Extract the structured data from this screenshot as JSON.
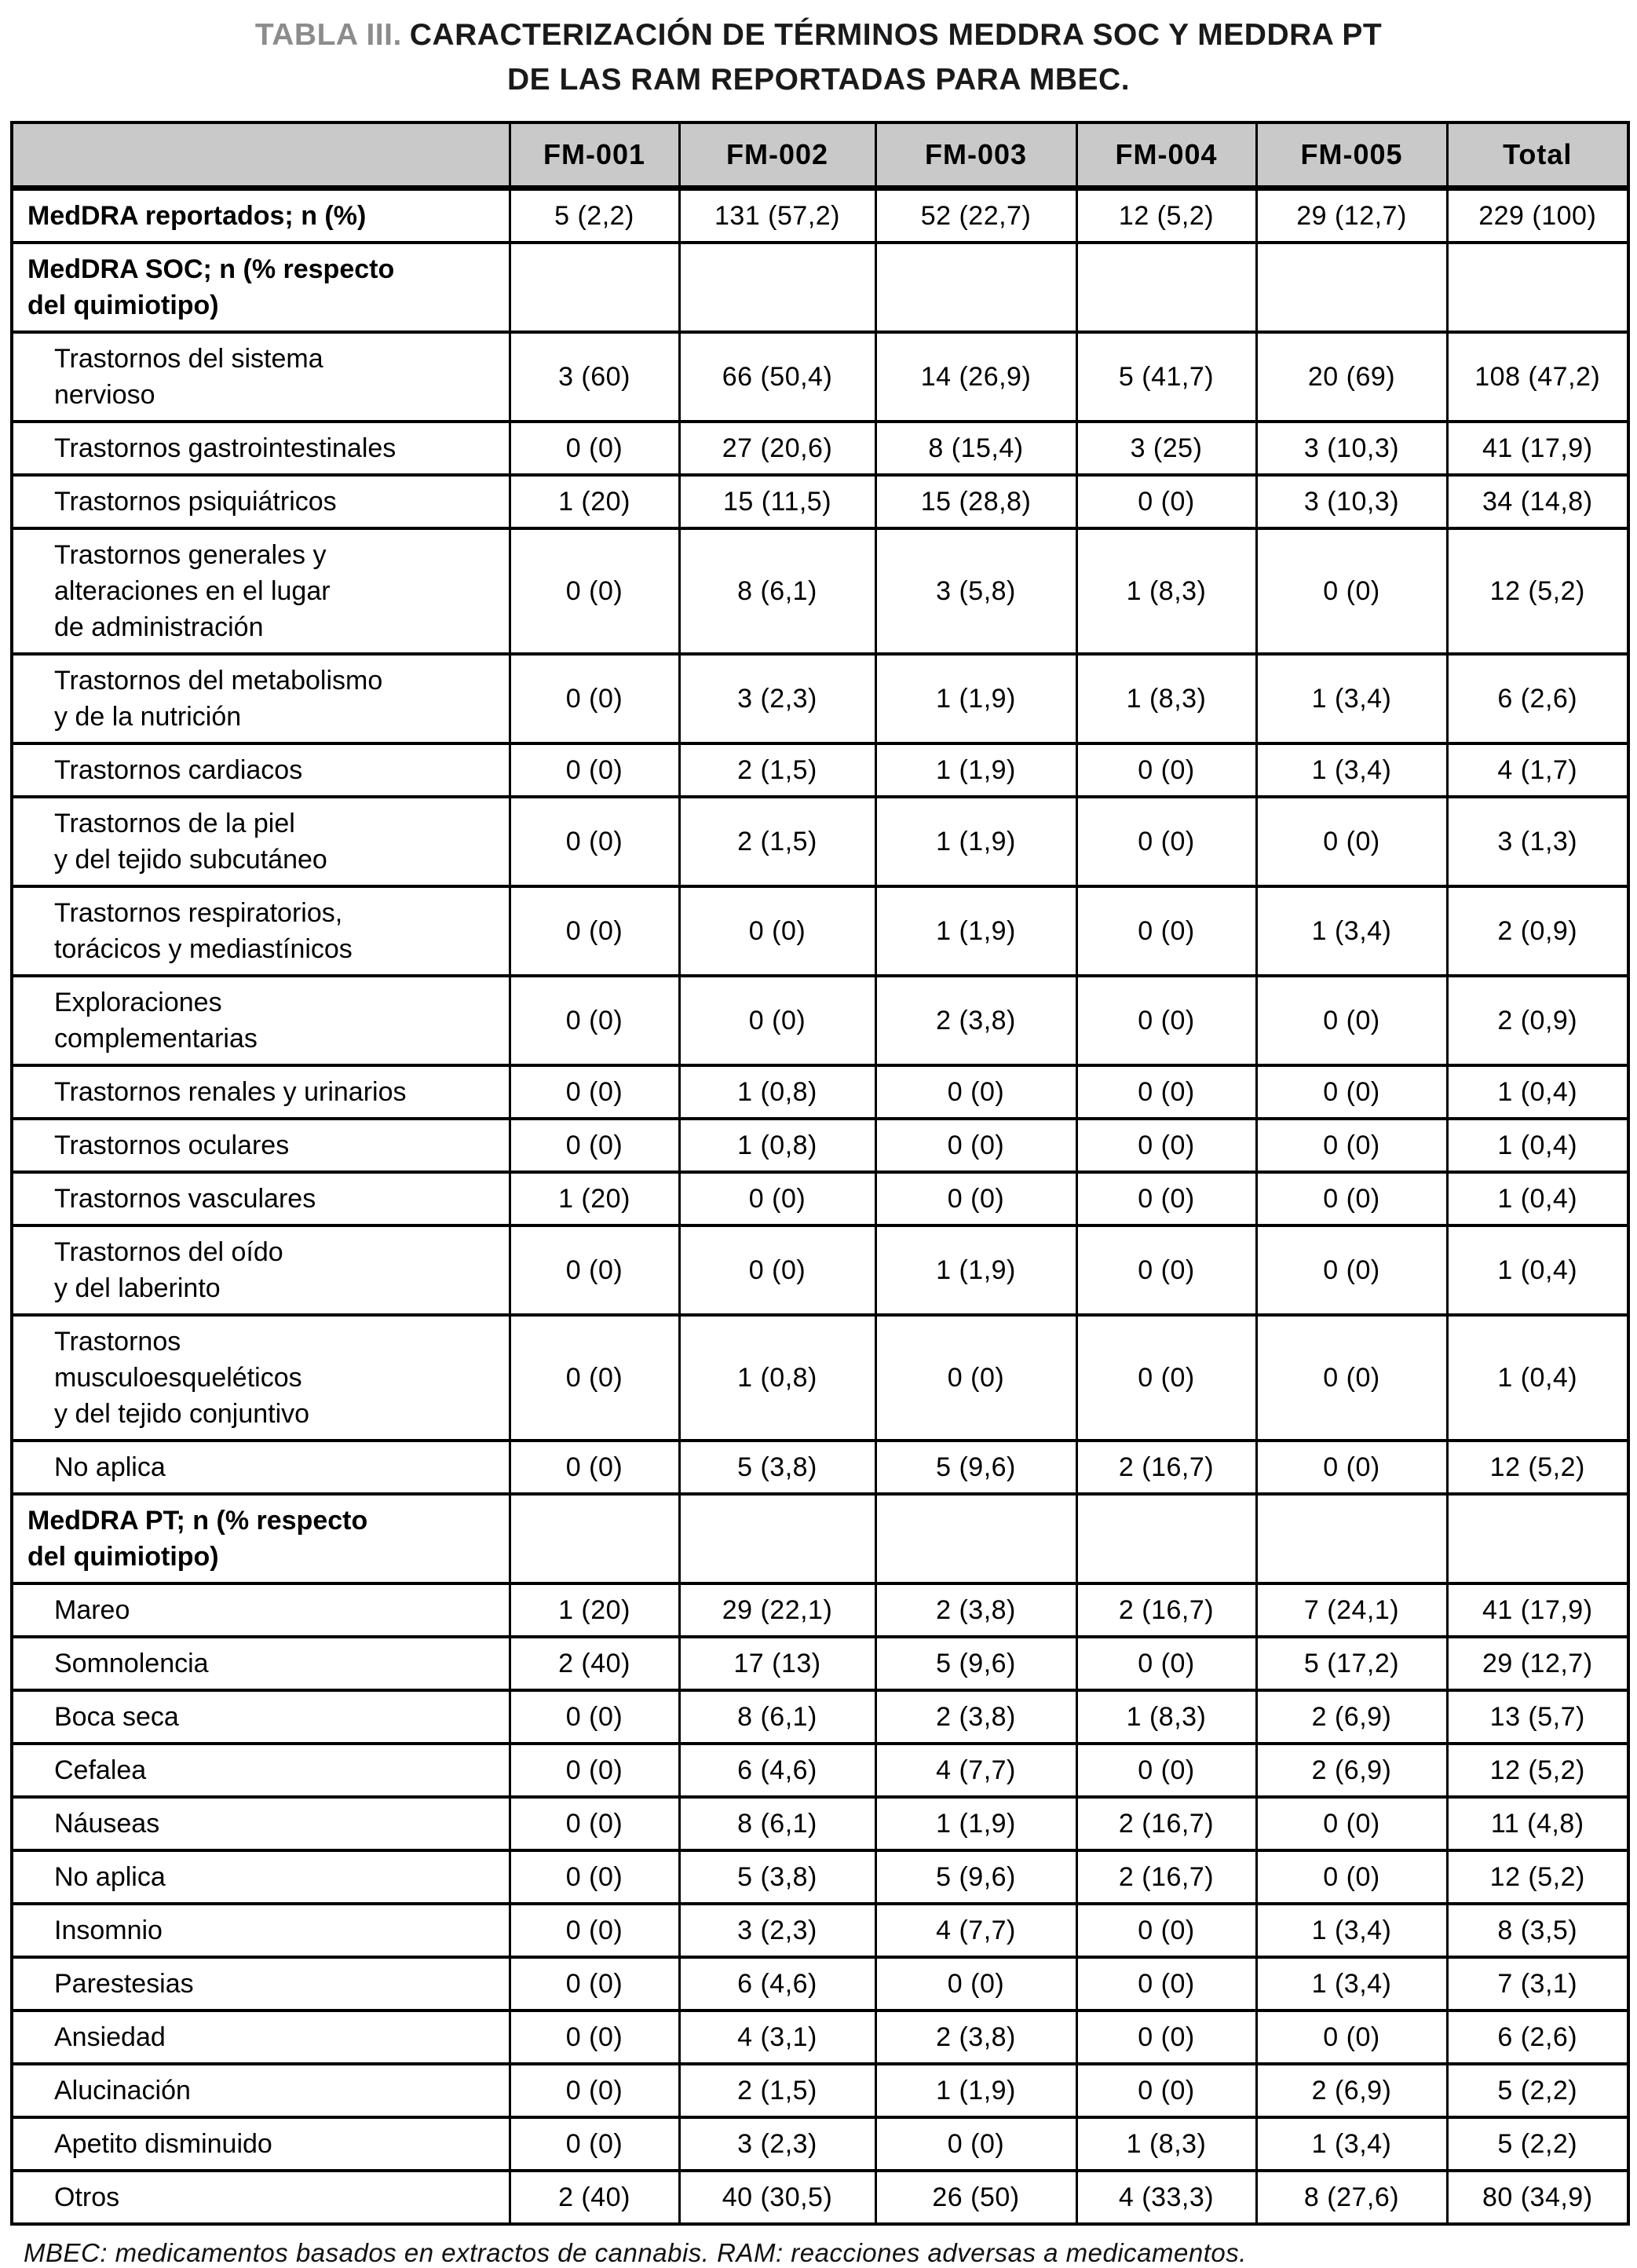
{
  "title": {
    "tag": "TABLA III.",
    "line1": "CARACTERIZACIÓN DE TÉRMINOS MEDDRA SOC Y MEDDRA PT",
    "line2": "DE LAS RAM REPORTADAS PARA MBEC."
  },
  "colors": {
    "header_bg": "#c9c9c9",
    "border": "#000000",
    "title_tag_gray": "#8c8c8c"
  },
  "table": {
    "columns": [
      "",
      "FM-001",
      "FM-002",
      "FM-003",
      "FM-004",
      "FM-005",
      "Total"
    ],
    "rows": [
      {
        "label": "MedDRA reportados; n (%)",
        "type": "bold",
        "values": [
          "5 (2,2)",
          "131 (57,2)",
          "52 (22,7)",
          "12 (5,2)",
          "29 (12,7)",
          "229 (100)"
        ]
      },
      {
        "label": "MedDRA SOC; n (% respecto\ndel quimiotipo)",
        "type": "section",
        "values": [
          "",
          "",
          "",
          "",
          "",
          ""
        ]
      },
      {
        "label": "Trastornos del sistema\nnervioso",
        "type": "data",
        "values": [
          "3 (60)",
          "66 (50,4)",
          "14 (26,9)",
          "5 (41,7)",
          "20 (69)",
          "108 (47,2)"
        ]
      },
      {
        "label": "Trastornos gastrointestinales",
        "type": "data",
        "values": [
          "0 (0)",
          "27 (20,6)",
          "8 (15,4)",
          "3 (25)",
          "3 (10,3)",
          "41 (17,9)"
        ]
      },
      {
        "label": "Trastornos psiquiátricos",
        "type": "data",
        "values": [
          "1 (20)",
          "15 (11,5)",
          "15 (28,8)",
          "0 (0)",
          "3 (10,3)",
          "34 (14,8)"
        ]
      },
      {
        "label": "Trastornos generales y\nalteraciones en el lugar\nde administración",
        "type": "data",
        "values": [
          "0 (0)",
          "8 (6,1)",
          "3 (5,8)",
          "1 (8,3)",
          "0 (0)",
          "12 (5,2)"
        ]
      },
      {
        "label": "Trastornos del metabolismo\ny de la nutrición",
        "type": "data",
        "values": [
          "0 (0)",
          "3 (2,3)",
          "1 (1,9)",
          "1 (8,3)",
          "1 (3,4)",
          "6 (2,6)"
        ]
      },
      {
        "label": "Trastornos cardiacos",
        "type": "data",
        "values": [
          "0 (0)",
          "2 (1,5)",
          "1 (1,9)",
          "0 (0)",
          "1 (3,4)",
          "4 (1,7)"
        ]
      },
      {
        "label": "Trastornos de la piel\ny del tejido subcutáneo",
        "type": "data",
        "values": [
          "0 (0)",
          "2 (1,5)",
          "1 (1,9)",
          "0 (0)",
          "0 (0)",
          "3 (1,3)"
        ]
      },
      {
        "label": "Trastornos respiratorios,\ntorácicos y mediastínicos",
        "type": "data",
        "values": [
          "0 (0)",
          "0 (0)",
          "1 (1,9)",
          "0 (0)",
          "1 (3,4)",
          "2 (0,9)"
        ]
      },
      {
        "label": "Exploraciones\ncomplementarias",
        "type": "data",
        "values": [
          "0 (0)",
          "0 (0)",
          "2 (3,8)",
          "0 (0)",
          "0 (0)",
          "2 (0,9)"
        ]
      },
      {
        "label": "Trastornos renales y urinarios",
        "type": "data",
        "values": [
          "0 (0)",
          "1 (0,8)",
          "0 (0)",
          "0 (0)",
          "0 (0)",
          "1 (0,4)"
        ]
      },
      {
        "label": "Trastornos oculares",
        "type": "data",
        "values": [
          "0 (0)",
          "1 (0,8)",
          "0 (0)",
          "0 (0)",
          "0 (0)",
          "1 (0,4)"
        ]
      },
      {
        "label": "Trastornos vasculares",
        "type": "data",
        "values": [
          "1 (20)",
          "0 (0)",
          "0 (0)",
          "0 (0)",
          "0 (0)",
          "1 (0,4)"
        ]
      },
      {
        "label": "Trastornos del oído\ny del laberinto",
        "type": "data",
        "values": [
          "0 (0)",
          "0 (0)",
          "1 (1,9)",
          "0 (0)",
          "0 (0)",
          "1 (0,4)"
        ]
      },
      {
        "label": "Trastornos\nmusculoesqueléticos\ny del tejido conjuntivo",
        "type": "data",
        "values": [
          "0 (0)",
          "1 (0,8)",
          "0 (0)",
          "0 (0)",
          "0 (0)",
          "1 (0,4)"
        ]
      },
      {
        "label": "No aplica",
        "type": "data",
        "values": [
          "0 (0)",
          "5 (3,8)",
          "5 (9,6)",
          "2 (16,7)",
          "0 (0)",
          "12 (5,2)"
        ]
      },
      {
        "label": "MedDRA PT; n (% respecto\ndel quimiotipo)",
        "type": "section",
        "values": [
          "",
          "",
          "",
          "",
          "",
          ""
        ]
      },
      {
        "label": "Mareo",
        "type": "data",
        "values": [
          "1 (20)",
          "29 (22,1)",
          "2 (3,8)",
          "2 (16,7)",
          "7 (24,1)",
          "41 (17,9)"
        ]
      },
      {
        "label": "Somnolencia",
        "type": "data",
        "values": [
          "2 (40)",
          "17 (13)",
          "5 (9,6)",
          "0 (0)",
          "5 (17,2)",
          "29 (12,7)"
        ]
      },
      {
        "label": "Boca seca",
        "type": "data",
        "values": [
          "0 (0)",
          "8 (6,1)",
          "2 (3,8)",
          "1 (8,3)",
          "2 (6,9)",
          "13 (5,7)"
        ]
      },
      {
        "label": "Cefalea",
        "type": "data",
        "values": [
          "0 (0)",
          "6 (4,6)",
          "4 (7,7)",
          "0 (0)",
          "2 (6,9)",
          "12 (5,2)"
        ]
      },
      {
        "label": "Náuseas",
        "type": "data",
        "values": [
          "0 (0)",
          "8 (6,1)",
          "1 (1,9)",
          "2 (16,7)",
          "0 (0)",
          "11 (4,8)"
        ]
      },
      {
        "label": "No aplica",
        "type": "data",
        "values": [
          "0 (0)",
          "5 (3,8)",
          "5 (9,6)",
          "2 (16,7)",
          "0 (0)",
          "12 (5,2)"
        ]
      },
      {
        "label": "Insomnio",
        "type": "data",
        "values": [
          "0 (0)",
          "3 (2,3)",
          "4 (7,7)",
          "0 (0)",
          "1 (3,4)",
          "8 (3,5)"
        ]
      },
      {
        "label": "Parestesias",
        "type": "data",
        "values": [
          "0 (0)",
          "6 (4,6)",
          "0 (0)",
          "0 (0)",
          "1 (3,4)",
          "7 (3,1)"
        ]
      },
      {
        "label": "Ansiedad",
        "type": "data",
        "values": [
          "0 (0)",
          "4 (3,1)",
          "2 (3,8)",
          "0 (0)",
          "0 (0)",
          "6 (2,6)"
        ]
      },
      {
        "label": "Alucinación",
        "type": "data",
        "values": [
          "0 (0)",
          "2 (1,5)",
          "1 (1,9)",
          "0 (0)",
          "2 (6,9)",
          "5 (2,2)"
        ]
      },
      {
        "label": "Apetito disminuido",
        "type": "data",
        "values": [
          "0 (0)",
          "3 (2,3)",
          "0 (0)",
          "1 (8,3)",
          "1 (3,4)",
          "5 (2,2)"
        ]
      },
      {
        "label": "Otros",
        "type": "data",
        "values": [
          "2 (40)",
          "40 (30,5)",
          "26 (50)",
          "4 (33,3)",
          "8 (27,6)",
          "80 (34,9)"
        ]
      }
    ]
  },
  "footnote": "MBEC: medicamentos basados en extractos de cannabis. RAM: reacciones adversas a medicamentos."
}
